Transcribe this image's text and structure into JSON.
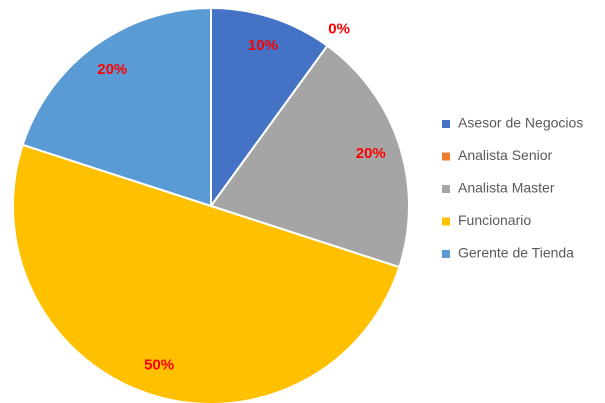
{
  "chart_data": {
    "type": "pie",
    "categories": [
      "Asesor de Negocios",
      "Analista Senior",
      "Analista Master",
      "Funcionario",
      "Gerente de Tienda"
    ],
    "values": [
      10,
      0,
      20,
      50,
      20
    ],
    "value_labels": [
      "10%",
      "0%",
      "20%",
      "50%",
      "20%"
    ],
    "colors": [
      "#4472c4",
      "#ed7d31",
      "#a5a5a5",
      "#ffc000",
      "#5b9bd5"
    ],
    "legend": "right"
  }
}
